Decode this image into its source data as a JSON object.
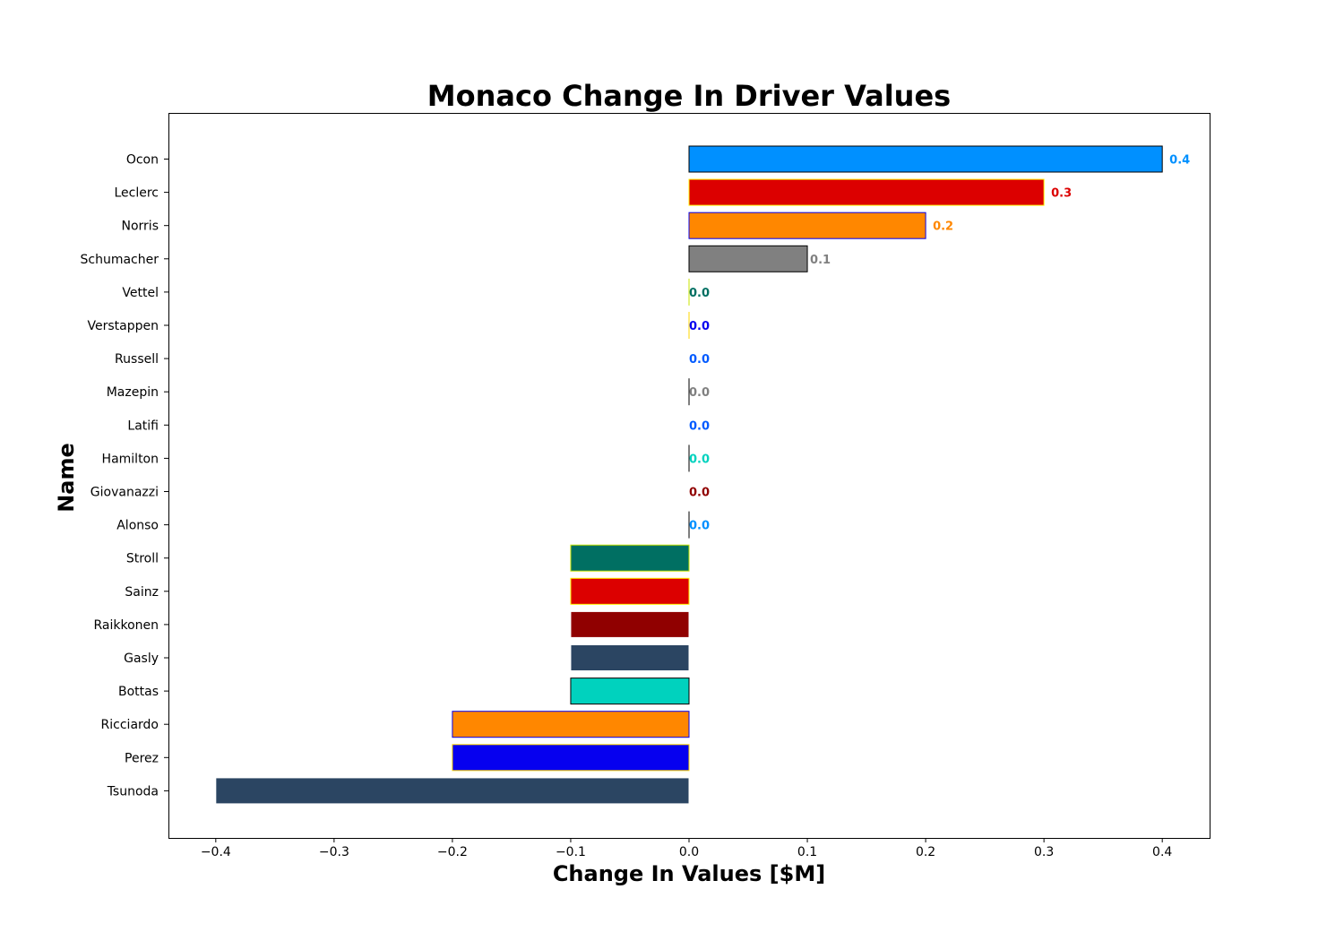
{
  "chart_data": {
    "type": "bar",
    "orientation": "horizontal",
    "title": "Monaco Change In Driver Values",
    "xlabel": "Change In Values [$M]",
    "ylabel": "Name",
    "xlim": [
      -0.44,
      0.44
    ],
    "xticks": [
      -0.4,
      -0.3,
      -0.2,
      -0.1,
      0.0,
      0.1,
      0.2,
      0.3,
      0.4
    ],
    "xtick_labels": [
      "−0.4",
      "−0.3",
      "−0.2",
      "−0.1",
      "0.0",
      "0.1",
      "0.2",
      "0.3",
      "0.4"
    ],
    "grid": false,
    "bars": [
      {
        "name": "Ocon",
        "value": 0.4,
        "label": "0.4",
        "fill": "#0090FF",
        "edge": "#000000",
        "label_color": "#0090FF"
      },
      {
        "name": "Leclerc",
        "value": 0.3,
        "label": "0.3",
        "fill": "#DC0000",
        "edge": "#FFF200",
        "label_color": "#DC0000"
      },
      {
        "name": "Norris",
        "value": 0.2,
        "label": "0.2",
        "fill": "#FF8700",
        "edge": "#0600EF",
        "label_color": "#FF8700"
      },
      {
        "name": "Schumacher",
        "value": 0.1,
        "label": "0.1",
        "fill": "#808080",
        "edge": "#000000",
        "label_color": "#808080"
      },
      {
        "name": "Vettel",
        "value": 0.0,
        "label": "0.0",
        "fill": "#006F62",
        "edge": "#C8E400",
        "label_color": "#006F62"
      },
      {
        "name": "Verstappen",
        "value": 0.0,
        "label": "0.0",
        "fill": "#0600EF",
        "edge": "#FFD700",
        "label_color": "#0600EF"
      },
      {
        "name": "Russell",
        "value": 0.0,
        "label": "0.0",
        "fill": "#005AFF",
        "edge": "#FFFFFF",
        "label_color": "#005AFF"
      },
      {
        "name": "Mazepin",
        "value": 0.0,
        "label": "0.0",
        "fill": "#808080",
        "edge": "#000000",
        "label_color": "#808080"
      },
      {
        "name": "Latifi",
        "value": 0.0,
        "label": "0.0",
        "fill": "#005AFF",
        "edge": "#FFFFFF",
        "label_color": "#005AFF"
      },
      {
        "name": "Hamilton",
        "value": 0.0,
        "label": "0.0",
        "fill": "#00D2BE",
        "edge": "#000000",
        "label_color": "#00D2BE"
      },
      {
        "name": "Giovanazzi",
        "value": 0.0,
        "label": "0.0",
        "fill": "#900000",
        "edge": "#FFFFFF",
        "label_color": "#900000"
      },
      {
        "name": "Alonso",
        "value": 0.0,
        "label": "0.0",
        "fill": "#0090FF",
        "edge": "#000000",
        "label_color": "#0090FF"
      },
      {
        "name": "Stroll",
        "value": -0.1,
        "label": "",
        "fill": "#006F62",
        "edge": "#C8E400",
        "label_color": "#006F62"
      },
      {
        "name": "Sainz",
        "value": -0.1,
        "label": "",
        "fill": "#DC0000",
        "edge": "#FFF200",
        "label_color": "#DC0000"
      },
      {
        "name": "Raikkonen",
        "value": -0.1,
        "label": "",
        "fill": "#900000",
        "edge": "#FFFFFF",
        "label_color": "#900000"
      },
      {
        "name": "Gasly",
        "value": -0.1,
        "label": "",
        "fill": "#2B4562",
        "edge": "#FFFFFF",
        "label_color": "#2B4562"
      },
      {
        "name": "Bottas",
        "value": -0.1,
        "label": "",
        "fill": "#00D2BE",
        "edge": "#000000",
        "label_color": "#00D2BE"
      },
      {
        "name": "Ricciardo",
        "value": -0.2,
        "label": "",
        "fill": "#FF8700",
        "edge": "#0600EF",
        "label_color": "#FF8700"
      },
      {
        "name": "Perez",
        "value": -0.2,
        "label": "",
        "fill": "#0600EF",
        "edge": "#FFD700",
        "label_color": "#0600EF"
      },
      {
        "name": "Tsunoda",
        "value": -0.4,
        "label": "",
        "fill": "#2B4562",
        "edge": "#FFFFFF",
        "label_color": "#2B4562"
      }
    ]
  }
}
